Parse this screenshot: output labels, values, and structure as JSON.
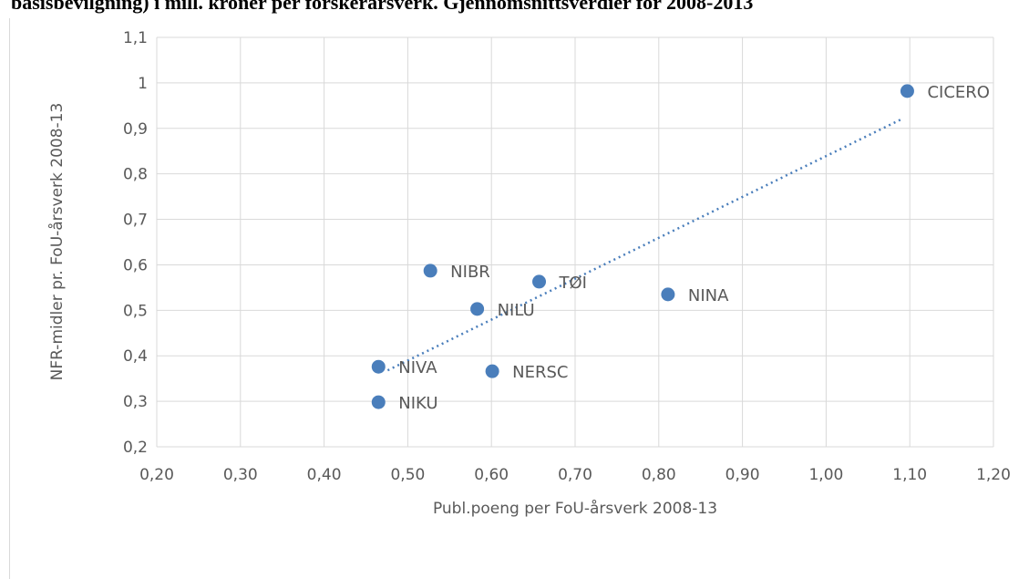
{
  "chart_data": {
    "type": "scatter",
    "title": "basisbevilgning) i mill. kroner per forskerårsverk. Gjennomsnittsverdier for 2008-2013",
    "x_label": "Publ.poeng per FoU-årsverk 2008-13",
    "y_label": "NFR-midler pr. FoU-årsverk 2008-13",
    "labels": [
      "CICERO",
      "NIBR",
      "TØI",
      "NILU",
      "NINA",
      "NIVA",
      "NERSC",
      "NIKU"
    ],
    "x": [
      1.097,
      0.527,
      0.657,
      0.583,
      0.811,
      0.465,
      0.601,
      0.465
    ],
    "y": [
      0.982,
      0.587,
      0.563,
      0.503,
      0.535,
      0.376,
      0.366,
      0.298
    ],
    "color": "#4a7ebb",
    "trendline": {
      "x": [
        0.476,
        1.091
      ],
      "y": [
        0.368,
        0.921
      ],
      "color": "#4a7ebb"
    },
    "xlim": [
      0.2,
      1.2
    ],
    "ylim": [
      0.2,
      1.1
    ],
    "xticks": [
      {
        "value": 0.2,
        "label": "0,20"
      },
      {
        "value": 0.3,
        "label": "0,30"
      },
      {
        "value": 0.4,
        "label": "0,40"
      },
      {
        "value": 0.5,
        "label": "0,50"
      },
      {
        "value": 0.6,
        "label": "0,60"
      },
      {
        "value": 0.7,
        "label": "0,70"
      },
      {
        "value": 0.8,
        "label": "0,80"
      },
      {
        "value": 0.9,
        "label": "0,90"
      },
      {
        "value": 1.0,
        "label": "1,00"
      },
      {
        "value": 1.1,
        "label": "1,10"
      },
      {
        "value": 1.2,
        "label": "1,20"
      }
    ],
    "yticks": [
      {
        "value": 0.2,
        "label": "0,2"
      },
      {
        "value": 0.3,
        "label": "0,3"
      },
      {
        "value": 0.4,
        "label": "0,4"
      },
      {
        "value": 0.5,
        "label": "0,5"
      },
      {
        "value": 0.6,
        "label": "0,6"
      },
      {
        "value": 0.7,
        "label": "0,7"
      },
      {
        "value": 0.8,
        "label": "0,8"
      },
      {
        "value": 0.9,
        "label": "0,9"
      },
      1,
      {
        "value": 1.1,
        "label": "1,1"
      }
    ],
    "grid": true
  }
}
